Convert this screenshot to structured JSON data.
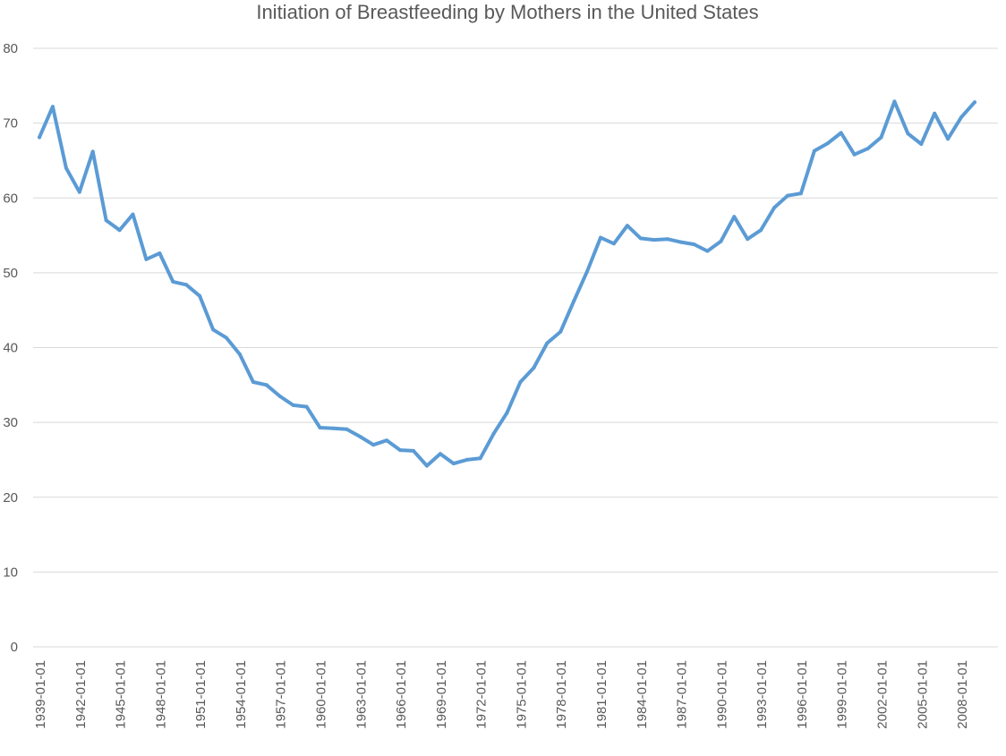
{
  "chart_data": {
    "type": "line",
    "title": "Initiation of Breastfeeding by Mothers in the United States",
    "xlabel": "",
    "ylabel": "",
    "ylim": [
      0,
      80
    ],
    "yticks": [
      "0",
      "10",
      "20",
      "30",
      "40",
      "50",
      "60",
      "70",
      "80"
    ],
    "grid": true,
    "legend": "none",
    "x_tick_labels": [
      "1939-01-01",
      "1942-01-01",
      "1945-01-01",
      "1948-01-01",
      "1951-01-01",
      "1954-01-01",
      "1957-01-01",
      "1960-01-01",
      "1963-01-01",
      "1966-01-01",
      "1969-01-01",
      "1972-01-01",
      "1975-01-01",
      "1978-01-01",
      "1981-01-01",
      "1984-01-01",
      "1987-01-01",
      "1990-01-01",
      "1993-01-01",
      "1996-01-01",
      "1999-01-01",
      "2002-01-01",
      "2005-01-01",
      "2008-01-01"
    ],
    "x": [
      1939,
      1940,
      1941,
      1942,
      1943,
      1944,
      1945,
      1946,
      1947,
      1948,
      1949,
      1950,
      1951,
      1952,
      1953,
      1954,
      1955,
      1956,
      1957,
      1958,
      1959,
      1960,
      1961,
      1962,
      1963,
      1964,
      1965,
      1966,
      1967,
      1968,
      1969,
      1970,
      1971,
      1972,
      1973,
      1974,
      1975,
      1976,
      1977,
      1978,
      1979,
      1980,
      1981,
      1982,
      1983,
      1984,
      1985,
      1986,
      1987,
      1988,
      1989,
      1990,
      1991,
      1992,
      1993,
      1994,
      1995,
      1996,
      1997,
      1998,
      1999,
      2000,
      2001,
      2002,
      2003,
      2004,
      2005,
      2006,
      2007,
      2008,
      2009
    ],
    "series": [
      {
        "name": "Initiation of Breastfeeding",
        "color": "#5b9bd5",
        "values": [
          68.1,
          72.2,
          64.0,
          60.8,
          66.2,
          57.0,
          55.7,
          57.8,
          51.8,
          52.6,
          48.8,
          48.4,
          46.9,
          42.4,
          41.3,
          39.1,
          35.4,
          35.0,
          33.5,
          32.3,
          32.1,
          29.3,
          29.2,
          29.1,
          28.1,
          27.0,
          27.6,
          26.3,
          26.2,
          24.2,
          25.8,
          24.5,
          25.0,
          25.2,
          28.5,
          31.3,
          35.4,
          37.3,
          40.6,
          42.1,
          46.2,
          50.2,
          54.7,
          53.9,
          56.3,
          54.6,
          54.4,
          54.5,
          54.1,
          53.8,
          52.9,
          54.2,
          57.5,
          54.5,
          55.7,
          58.7,
          60.3,
          60.6,
          66.3,
          67.3,
          68.7,
          65.8,
          66.6,
          68.1,
          72.9,
          68.6,
          67.2,
          71.3,
          67.9,
          70.8,
          72.8
        ]
      }
    ]
  }
}
